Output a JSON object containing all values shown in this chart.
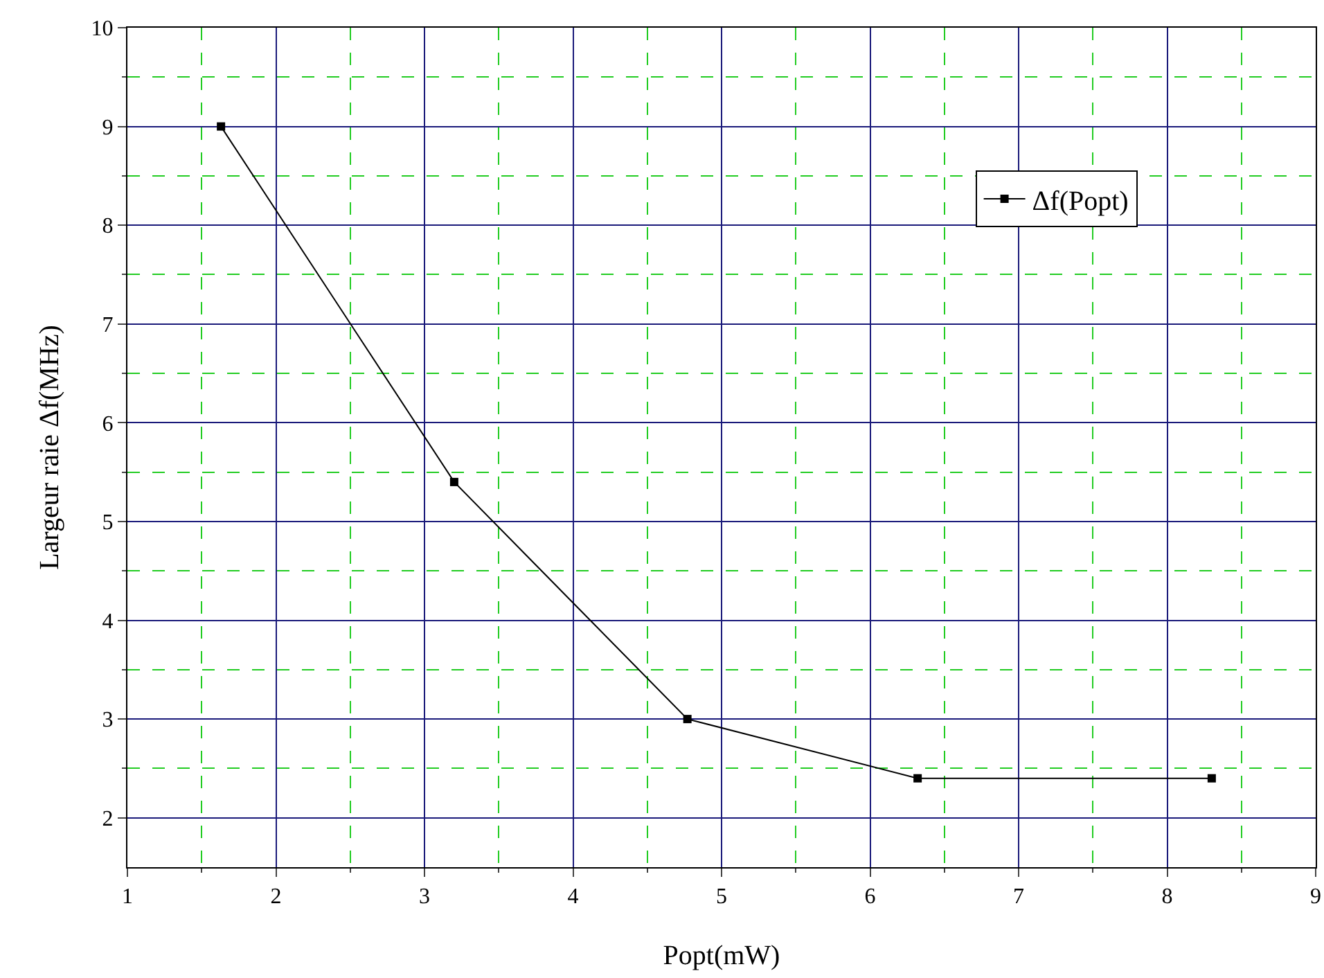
{
  "chart_data": {
    "type": "line",
    "xlabel": "Popt(mW)",
    "ylabel": "Largeur raie Δf(MHz)",
    "x": [
      1.63,
      3.2,
      4.77,
      6.32,
      8.3
    ],
    "series": [
      {
        "name": "Δf(Popt)",
        "color": "#000000",
        "values": [
          9.0,
          5.4,
          3.0,
          2.4,
          2.4
        ]
      }
    ],
    "xlim": [
      1,
      9
    ],
    "xticks": [
      1,
      {
        "value": 1.5,
        "label": null
      },
      2,
      {
        "value": 2.5,
        "label": null
      },
      3,
      {
        "value": 3.5,
        "label": null
      },
      4,
      {
        "value": 4.5,
        "label": null
      },
      5,
      {
        "value": 5.5,
        "label": null
      },
      6,
      {
        "value": 6.5,
        "label": null
      },
      7,
      {
        "value": 7.5,
        "label": null
      },
      8,
      {
        "value": 8.5,
        "label": null
      },
      9
    ],
    "ylim": [
      1.5,
      10
    ],
    "yticks": [
      2,
      {
        "value": 2.5,
        "label": null
      },
      3,
      {
        "value": 3.5,
        "label": null
      },
      4,
      {
        "value": 4.5,
        "label": null
      },
      5,
      {
        "value": 5.5,
        "label": null
      },
      6,
      {
        "value": 6.5,
        "label": null
      },
      7,
      {
        "value": 7.5,
        "label": null
      },
      8,
      {
        "value": 8.5,
        "label": null
      },
      9,
      {
        "value": 9.5,
        "label": null
      },
      10
    ],
    "grid": true,
    "legend": "top right",
    "marker": "square",
    "line_style": "solid"
  }
}
